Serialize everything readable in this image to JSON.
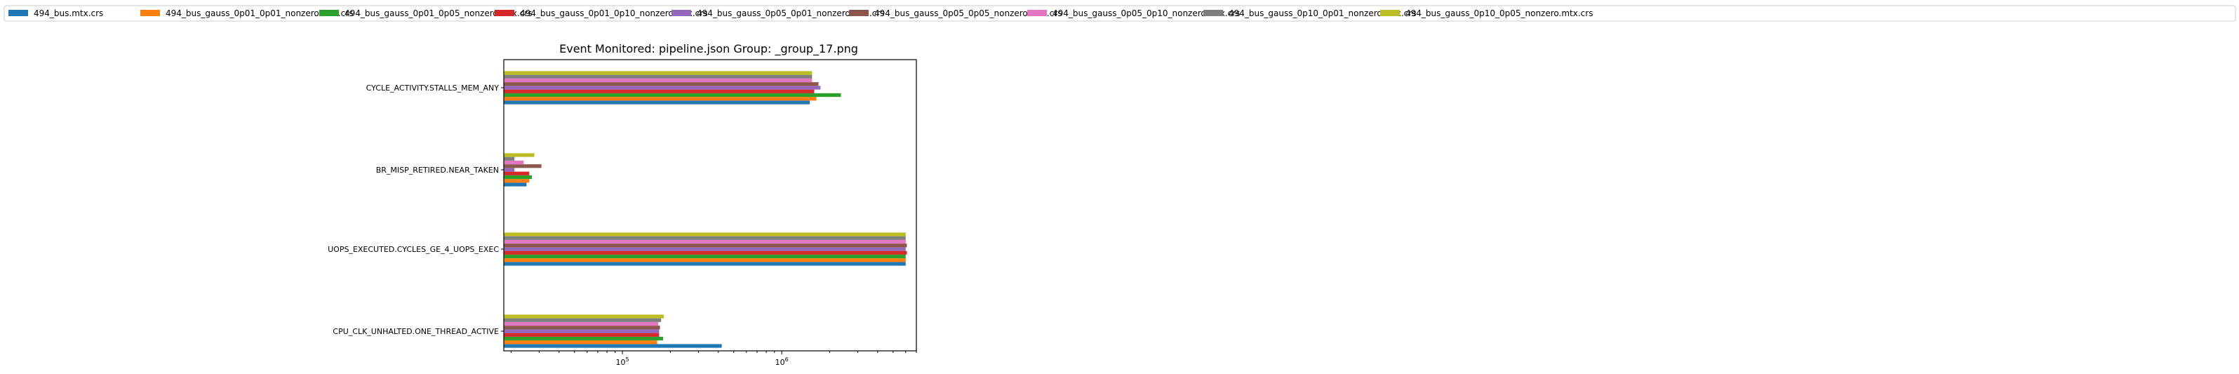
{
  "chart_data": {
    "type": "bar",
    "orientation": "horizontal",
    "title": "Event Monitored: pipeline.json Group: _group_17.png",
    "xlabel": "",
    "ylabel": "",
    "xscale": "log",
    "xlim": [
      18000,
      7000000
    ],
    "xticks": [
      {
        "value": 100000,
        "base": "10",
        "exp": "5"
      },
      {
        "value": 1000000,
        "base": "10",
        "exp": "6"
      }
    ],
    "grid": false,
    "legend_location": "top, single row spanning full width",
    "categories": [
      "CYCLE_ACTIVITY.STALLS_MEM_ANY",
      "BR_MISP_RETIRED.NEAR_TAKEN",
      "UOPS_EXECUTED.CYCLES_GE_4_UOPS_EXEC",
      "CPU_CLK_UNHALTED.ONE_THREAD_ACTIVE"
    ],
    "series": [
      {
        "name": "494_bus.mtx.crs",
        "color": "#1f77b4",
        "values": [
          1500000,
          25000,
          6000000,
          420000
        ]
      },
      {
        "name": "494_bus_gauss_0p01_0p01_nonzero.mtx.crs",
        "color": "#ff7f0e",
        "values": [
          1650000,
          26000,
          6000000,
          165000
        ]
      },
      {
        "name": "494_bus_gauss_0p01_0p05_nonzero.mtx.crs",
        "color": "#2ca02c",
        "values": [
          2350000,
          27000,
          6000000,
          180000
        ]
      },
      {
        "name": "494_bus_gauss_0p01_0p10_nonzero.mtx.crs",
        "color": "#d62728",
        "values": [
          1600000,
          26000,
          6100000,
          170000
        ]
      },
      {
        "name": "494_bus_gauss_0p05_0p01_nonzero.mtx.crs",
        "color": "#9467bd",
        "values": [
          1750000,
          21000,
          6000000,
          170000
        ]
      },
      {
        "name": "494_bus_gauss_0p05_0p05_nonzero.mtx.crs",
        "color": "#8c564b",
        "values": [
          1700000,
          31000,
          6100000,
          172000
        ]
      },
      {
        "name": "494_bus_gauss_0p05_0p10_nonzero.mtx.crs",
        "color": "#e377c2",
        "values": [
          1550000,
          24000,
          6000000,
          168000
        ]
      },
      {
        "name": "494_bus_gauss_0p10_0p01_nonzero.mtx.crs",
        "color": "#7f7f7f",
        "values": [
          1550000,
          21000,
          6000000,
          175000
        ]
      },
      {
        "name": "494_bus_gauss_0p10_0p05_nonzero.mtx.crs",
        "color": "#bcbd22",
        "values": [
          1550000,
          28000,
          6000000,
          182000
        ]
      }
    ]
  }
}
